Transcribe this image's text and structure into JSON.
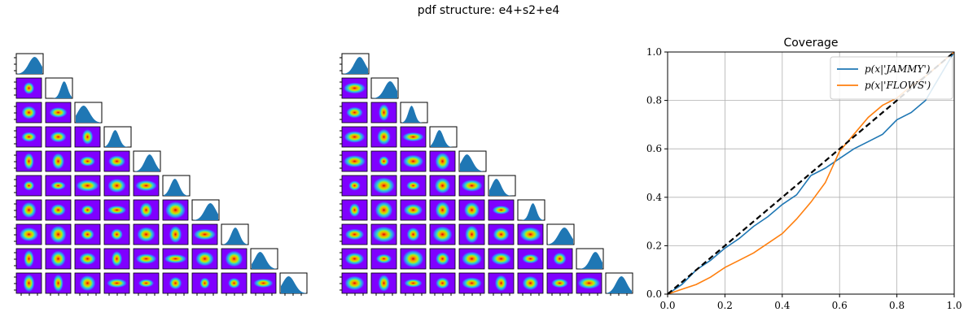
{
  "figure": {
    "suptitle": "pdf structure:  e4+s2+e4"
  },
  "corner_plots": {
    "n_params": 10,
    "colormap": "rainbow",
    "histogram_color": "#1f77b4"
  },
  "chart_data": {
    "type": "line",
    "title": "Coverage",
    "xlabel": "",
    "ylabel": "",
    "xlim": [
      0.0,
      1.0
    ],
    "ylim": [
      0.0,
      1.0
    ],
    "xticks": [
      "0.0",
      "0.2",
      "0.4",
      "0.6",
      "0.8",
      "1.0"
    ],
    "yticks": [
      "0.0",
      "0.2",
      "0.4",
      "0.6",
      "0.8",
      "1.0"
    ],
    "grid": true,
    "legend_position": "upper right",
    "series": [
      {
        "name": "p(x|'JAMMY')",
        "color": "#1f77b4",
        "x": [
          0,
          0.05,
          0.1,
          0.15,
          0.2,
          0.25,
          0.3,
          0.35,
          0.4,
          0.45,
          0.5,
          0.55,
          0.6,
          0.65,
          0.7,
          0.75,
          0.8,
          0.85,
          0.9,
          0.95,
          1.0
        ],
        "y": [
          0,
          0.04,
          0.1,
          0.14,
          0.19,
          0.23,
          0.28,
          0.32,
          0.37,
          0.41,
          0.49,
          0.52,
          0.56,
          0.6,
          0.63,
          0.66,
          0.72,
          0.75,
          0.8,
          0.9,
          1.0
        ]
      },
      {
        "name": "p(x|'FLOWS')",
        "color": "#ff7f0e",
        "x": [
          0,
          0.05,
          0.1,
          0.15,
          0.2,
          0.25,
          0.3,
          0.35,
          0.4,
          0.45,
          0.5,
          0.55,
          0.6,
          0.65,
          0.7,
          0.75,
          0.8,
          0.85,
          0.9,
          0.95,
          1.0
        ],
        "y": [
          0,
          0.02,
          0.04,
          0.07,
          0.11,
          0.14,
          0.17,
          0.21,
          0.25,
          0.31,
          0.38,
          0.46,
          0.59,
          0.66,
          0.73,
          0.78,
          0.81,
          0.86,
          0.9,
          0.95,
          1.0
        ]
      },
      {
        "name": "",
        "color": "#000000",
        "style": "dashed",
        "x": [
          0,
          1.0
        ],
        "y": [
          0,
          1.0
        ]
      }
    ]
  }
}
